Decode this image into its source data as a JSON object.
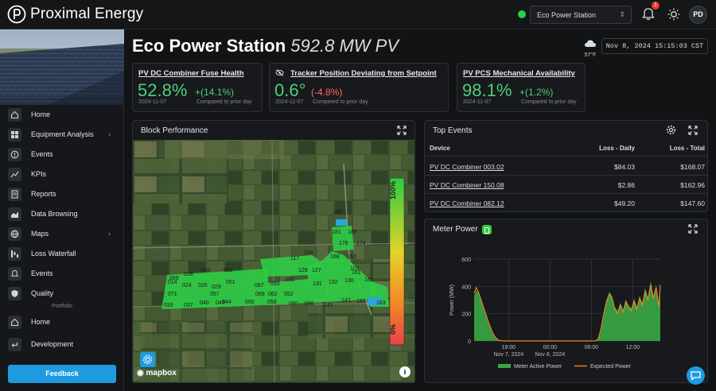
{
  "app": {
    "name": "Proximal Energy"
  },
  "header": {
    "site_select": "Eco Power Station",
    "notification_count": "1",
    "user_initials": "PD"
  },
  "sidebar": {
    "items": [
      {
        "label": "Home",
        "icon": "home-icon",
        "chevron": ""
      },
      {
        "label": "Equipment Analysis",
        "icon": "grid-icon",
        "chevron": "›"
      },
      {
        "label": "Events",
        "icon": "alert-circle-icon",
        "chevron": ""
      },
      {
        "label": "KPIs",
        "icon": "trend-chart-icon",
        "chevron": ""
      },
      {
        "label": "Reports",
        "icon": "report-icon",
        "chevron": ""
      },
      {
        "label": "Data Browsing",
        "icon": "area-chart-icon",
        "chevron": ""
      },
      {
        "label": "Maps",
        "icon": "globe-icon",
        "chevron": "›"
      },
      {
        "label": "Loss Waterfall",
        "icon": "waterfall-icon",
        "chevron": ""
      },
      {
        "label": "Events",
        "icon": "bell-event-icon",
        "chevron": ""
      },
      {
        "label": "Quality",
        "icon": "shield-icon",
        "chevron": ""
      }
    ],
    "portfolio_label": "Portfolio",
    "portfolio_items": [
      {
        "label": "Home",
        "icon": "home-icon"
      },
      {
        "label": "Development",
        "icon": "return-icon"
      }
    ],
    "feedback": "Feedback"
  },
  "page": {
    "title": "Eco Power Station",
    "subtitle": "592.8 MW PV",
    "temperature": "57°F",
    "datetime": "Nov 8, 2024 15:15:03 CST"
  },
  "kpis": [
    {
      "title": "PV DC Combiner Fuse Health",
      "value": "52.8%",
      "delta": "+(14.1%)",
      "delta_color": "#4cd07d",
      "date": "2024-11-07",
      "compare": "Compared to prior day",
      "has_icon": false
    },
    {
      "title": "Tracker Position Deviating from Setpoint",
      "value": "0.6°",
      "delta": "(-4.8%)",
      "delta_color": "#ff6b6b",
      "date": "2024-11-07",
      "compare": "Compared to prior day",
      "has_icon": true
    },
    {
      "title": "PV PCS Mechanical Availability",
      "value": "98.1%",
      "delta": "+(1.2%)",
      "delta_color": "#4cd07d",
      "date": "2024-11-07",
      "compare": "Compared to prior day",
      "has_icon": false
    }
  ],
  "block_performance": {
    "title": "Block Performance",
    "scale_top": "100%",
    "scale_bottom": "0%",
    "attribution": "mapbox",
    "block_labels": [
      "189",
      "181",
      "186",
      "178",
      "174",
      "168",
      "163",
      "117",
      "104",
      "129",
      "127",
      "103",
      "069",
      "018",
      "060",
      "062",
      "051",
      "087",
      "093",
      "095",
      "131",
      "132",
      "136",
      "161",
      "167",
      "014",
      "024",
      "026",
      "029",
      "057",
      "089",
      "062",
      "052",
      "071",
      "044",
      "050",
      "058",
      "080",
      "086",
      "145",
      "147",
      "153",
      "163",
      "033",
      "037",
      "040",
      "044"
    ]
  },
  "top_events": {
    "title": "Top Events",
    "columns": [
      "Device",
      "Loss - Daily",
      "Loss - Total"
    ],
    "rows": [
      {
        "device": "PV DC Combiner 003.02",
        "daily": "$84.03",
        "total": "$168.07"
      },
      {
        "device": "PV DC Combiner 150.08",
        "daily": "$2.86",
        "total": "$162.96"
      },
      {
        "device": "PV DC Combiner 082.12",
        "daily": "$49.20",
        "total": "$147.60"
      }
    ]
  },
  "meter_power": {
    "title": "Meter Power"
  },
  "chart_data": {
    "type": "area",
    "title": "Meter Power",
    "ylabel": "Power (MW)",
    "xlabel": "",
    "ylim": [
      0,
      600
    ],
    "yticks": [
      0,
      200,
      400,
      600
    ],
    "xlim": [
      13,
      40
    ],
    "xticks": [
      {
        "x": 18,
        "label": "18:00",
        "sub": "Nov 7, 2024"
      },
      {
        "x": 24,
        "label": "00:00",
        "sub": "Nov 8, 2024"
      },
      {
        "x": 30,
        "label": "06:00",
        "sub": ""
      },
      {
        "x": 36,
        "label": "12:00",
        "sub": ""
      }
    ],
    "series": [
      {
        "name": "Meter Active Power",
        "color": "#3aa845",
        "kind": "area",
        "x": [
          13,
          13.3,
          13.6,
          14,
          14.4,
          14.8,
          15.2,
          15.6,
          16,
          16.4,
          16.8,
          17.2,
          30.6,
          31,
          31.4,
          31.8,
          32.2,
          32.6,
          33,
          33.4,
          33.8,
          34.2,
          34.6,
          35,
          35.4,
          35.8,
          36.2,
          36.6,
          37,
          37.4,
          37.8,
          38.2,
          38.6,
          39,
          39.4,
          39.8,
          40
        ],
        "y": [
          330,
          370,
          350,
          290,
          230,
          170,
          110,
          60,
          25,
          8,
          2,
          0,
          0,
          10,
          70,
          180,
          300,
          360,
          330,
          250,
          220,
          280,
          230,
          300,
          260,
          240,
          310,
          250,
          330,
          280,
          390,
          320,
          440,
          330,
          410,
          260,
          430
        ]
      },
      {
        "name": "Expected Power",
        "color": "#e8832a",
        "kind": "line",
        "x": [
          13,
          13.3,
          13.6,
          14,
          14.4,
          14.8,
          15.2,
          15.6,
          16,
          16.4,
          16.8,
          17.2,
          30.6,
          31,
          31.4,
          31.8,
          32.2,
          32.6,
          33,
          33.4,
          33.8,
          34.2,
          34.6,
          35,
          35.4,
          35.8,
          36.2,
          36.6,
          37,
          37.4,
          37.8,
          38.2,
          38.6,
          39,
          39.4,
          39.8,
          40
        ],
        "y": [
          350,
          390,
          360,
          300,
          240,
          180,
          120,
          70,
          30,
          10,
          3,
          0,
          0,
          15,
          90,
          200,
          290,
          340,
          310,
          230,
          200,
          260,
          210,
          290,
          240,
          220,
          290,
          230,
          310,
          260,
          360,
          300,
          410,
          310,
          390,
          250,
          410
        ]
      }
    ]
  }
}
